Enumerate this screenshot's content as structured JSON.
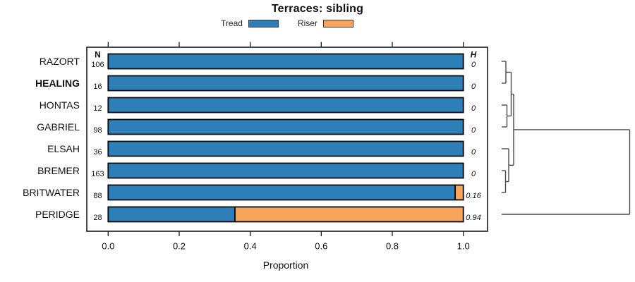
{
  "chart_data": {
    "type": "bar",
    "stacked": true,
    "horizontal": true,
    "title": "Terraces: sibling",
    "xlabel": "Proportion",
    "xlim": [
      0,
      1.07
    ],
    "x_ticks": [
      "0.0",
      "0.2",
      "0.4",
      "0.6",
      "0.8",
      "1.0"
    ],
    "x_tick_values": [
      0.0,
      0.2,
      0.4,
      0.6,
      0.8,
      1.0
    ],
    "grid": false,
    "legend_position": "top",
    "series_names": [
      "Tread",
      "Riser"
    ],
    "legend": [
      {
        "label": "Tread",
        "color": "#2e7eb8"
      },
      {
        "label": "Riser",
        "color": "#f9a45c"
      }
    ],
    "columns": {
      "n_header": "N",
      "h_header": "H"
    },
    "rows": [
      {
        "label": "RAZORT",
        "n": 106,
        "h": "0",
        "tread": 1.0,
        "riser": 0.0,
        "bold": false
      },
      {
        "label": "HEALING",
        "n": 16,
        "h": "0",
        "tread": 1.0,
        "riser": 0.0,
        "bold": true
      },
      {
        "label": "HONTAS",
        "n": 12,
        "h": "0",
        "tread": 1.0,
        "riser": 0.0,
        "bold": false
      },
      {
        "label": "GABRIEL",
        "n": 98,
        "h": "0",
        "tread": 1.0,
        "riser": 0.0,
        "bold": false
      },
      {
        "label": "ELSAH",
        "n": 36,
        "h": "0",
        "tread": 1.0,
        "riser": 0.0,
        "bold": false
      },
      {
        "label": "BREMER",
        "n": 163,
        "h": "0",
        "tread": 1.0,
        "riser": 0.0,
        "bold": false
      },
      {
        "label": "BRITWATER",
        "n": 88,
        "h": "0.16",
        "tread": 0.977,
        "riser": 0.023,
        "bold": false
      },
      {
        "label": "PERIDGE",
        "n": 28,
        "h": "0.94",
        "tread": 0.357,
        "riser": 0.643,
        "bold": false
      }
    ],
    "dendrogram": {
      "leaf_order": [
        "RAZORT",
        "HEALING",
        "HONTAS",
        "GABRIEL",
        "ELSAH",
        "BREMER",
        "BRITWATER",
        "PERIDGE"
      ],
      "structure": "((((RAZORT,HEALING),(HONTAS,GABRIEL)),(ELSAH,(BREMER,BRITWATER))),PERIDGE)",
      "segments": [
        [
          711,
          87,
          717,
          87
        ],
        [
          711,
          118,
          717,
          118
        ],
        [
          717,
          87,
          717,
          118
        ],
        [
          717,
          102.5,
          724.5,
          102.5
        ],
        [
          711,
          149,
          718.5,
          149
        ],
        [
          711,
          180,
          718.5,
          180
        ],
        [
          718.5,
          149,
          718.5,
          180
        ],
        [
          718.5,
          164.5,
          724.5,
          164.5
        ],
        [
          724.5,
          102.5,
          724.5,
          164.5
        ],
        [
          724.5,
          133.5,
          728,
          133.5
        ],
        [
          711,
          211,
          721,
          211
        ],
        [
          711,
          242,
          716.5,
          242
        ],
        [
          711,
          273,
          716.5,
          273
        ],
        [
          716.5,
          242,
          716.5,
          273
        ],
        [
          716.5,
          257.5,
          721,
          257.5
        ],
        [
          721,
          211,
          721,
          257.5
        ],
        [
          721,
          234.3,
          728,
          234.3
        ],
        [
          728,
          133.5,
          728,
          234.3
        ],
        [
          728,
          183.9,
          892.5,
          183.9
        ],
        [
          711,
          304,
          892.5,
          304
        ],
        [
          892.5,
          183.9,
          892.5,
          304
        ]
      ]
    },
    "colors": {
      "tread": "#2e7eb8",
      "riser": "#f9a45c",
      "bar_border": "#0a0a0a",
      "box": "#1b1b1b",
      "dendrogram_line": "#4a4a4a",
      "text": "#111111",
      "background": "#ffffff"
    }
  }
}
